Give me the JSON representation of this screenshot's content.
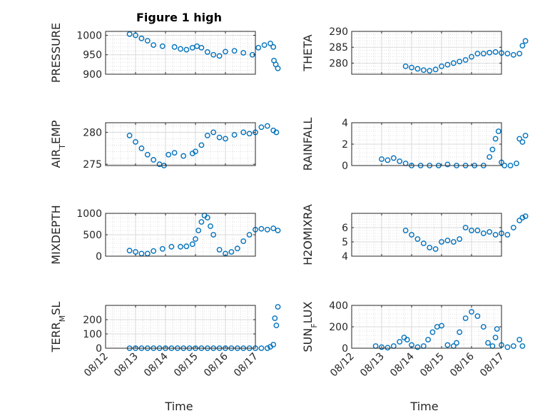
{
  "figure": {
    "title": "Figure 1 high",
    "xlabel": "Time",
    "x_tick_labels": [
      "08/12",
      "08/13",
      "08/14",
      "08/15",
      "08/16",
      "08/17"
    ]
  },
  "colors": {
    "marker": "#0072BD",
    "axes": "#262626",
    "grid": "#c8c8c8",
    "background": "#ffffff"
  },
  "chart_data": [
    {
      "type": "scatter",
      "ylabel": "PRESSURE",
      "ylim": [
        900,
        1010
      ],
      "yticks": [
        900,
        950,
        1000
      ],
      "x_axis_ticks_labelled": false,
      "series": [
        {
          "x": [
            0.8,
            1.0,
            1.2,
            1.4,
            1.6,
            1.9,
            2.3,
            2.5,
            2.7,
            2.9,
            3.05,
            3.2,
            3.4,
            3.6,
            3.8,
            4.0,
            4.3,
            4.6,
            4.9,
            5.1,
            5.3,
            5.5,
            5.6,
            5.62,
            5.68,
            5.75
          ],
          "y": [
            1003,
            1000,
            992,
            986,
            975,
            972,
            970,
            965,
            963,
            968,
            972,
            968,
            957,
            950,
            947,
            958,
            960,
            955,
            950,
            968,
            975,
            979,
            970,
            935,
            925,
            915
          ]
        }
      ]
    },
    {
      "type": "scatter",
      "ylabel": "THETA",
      "ylim": [
        276.5,
        290
      ],
      "yticks": [
        280,
        285,
        290
      ],
      "x_axis_ticks_labelled": false,
      "series": [
        {
          "x": [
            1.8,
            2.0,
            2.2,
            2.4,
            2.6,
            2.8,
            3.0,
            3.2,
            3.4,
            3.6,
            3.8,
            4.0,
            4.2,
            4.4,
            4.6,
            4.8,
            5.0,
            5.2,
            5.4,
            5.6,
            5.7,
            5.8
          ],
          "y": [
            279,
            278.6,
            278.2,
            277.8,
            277.6,
            278,
            279,
            279.5,
            280,
            280.5,
            281,
            282,
            283,
            283,
            283.3,
            283.5,
            283.2,
            283,
            282.6,
            283,
            285.5,
            287
          ]
        }
      ]
    },
    {
      "type": "scatter",
      "ylabel": "AIR_TEMP",
      "ylim": [
        274.8,
        281.5
      ],
      "yticks": [
        275,
        280
      ],
      "x_axis_ticks_labelled": false,
      "series": [
        {
          "x": [
            0.8,
            1.0,
            1.2,
            1.4,
            1.6,
            1.8,
            1.95,
            2.1,
            2.3,
            2.6,
            2.9,
            3.0,
            3.2,
            3.4,
            3.6,
            3.8,
            4.0,
            4.3,
            4.6,
            4.8,
            5.0,
            5.2,
            5.4,
            5.6,
            5.7
          ],
          "y": [
            279.5,
            278.5,
            277.5,
            276.5,
            275.7,
            275,
            274.8,
            276.5,
            276.8,
            276.3,
            276.7,
            277,
            278,
            279.5,
            280,
            279.2,
            279,
            279.6,
            280,
            279.8,
            280,
            280.8,
            281,
            280.3,
            280
          ]
        }
      ]
    },
    {
      "type": "scatter",
      "ylabel": "RAINFALL",
      "ylim": [
        0,
        4
      ],
      "yticks": [
        0,
        2,
        4
      ],
      "x_axis_ticks_labelled": false,
      "series": [
        {
          "x": [
            1.0,
            1.2,
            1.4,
            1.6,
            1.8,
            2.0,
            2.3,
            2.6,
            2.9,
            3.2,
            3.5,
            3.8,
            4.1,
            4.4,
            4.6,
            4.7,
            4.8,
            4.9,
            5.0,
            5.1,
            5.3,
            5.5,
            5.6,
            5.7,
            5.8
          ],
          "y": [
            0.6,
            0.5,
            0.7,
            0.4,
            0.2,
            0,
            0,
            0,
            0,
            0.1,
            0,
            0,
            0,
            0,
            0.8,
            1.5,
            2.5,
            3.2,
            0.3,
            0,
            0,
            0.2,
            2.5,
            2.2,
            2.8
          ]
        }
      ]
    },
    {
      "type": "scatter",
      "ylabel": "MIXDEPTH",
      "ylim": [
        0,
        1000
      ],
      "yticks": [
        0,
        500,
        1000
      ],
      "x_axis_ticks_labelled": false,
      "series": [
        {
          "x": [
            0.8,
            1.0,
            1.2,
            1.4,
            1.6,
            1.9,
            2.2,
            2.5,
            2.7,
            2.9,
            3.0,
            3.1,
            3.2,
            3.3,
            3.4,
            3.5,
            3.6,
            3.8,
            4.0,
            4.2,
            4.4,
            4.6,
            4.8,
            5.0,
            5.2,
            5.4,
            5.6,
            5.75
          ],
          "y": [
            130,
            100,
            60,
            60,
            120,
            170,
            220,
            220,
            230,
            280,
            400,
            600,
            800,
            950,
            900,
            700,
            500,
            150,
            60,
            100,
            180,
            350,
            500,
            620,
            640,
            620,
            650,
            600
          ]
        }
      ]
    },
    {
      "type": "scatter",
      "ylabel": "H2OMIXRA",
      "ylim": [
        4,
        7
      ],
      "yticks": [
        4,
        5,
        6
      ],
      "x_axis_ticks_labelled": false,
      "series": [
        {
          "x": [
            1.8,
            2.0,
            2.2,
            2.4,
            2.6,
            2.8,
            3.0,
            3.2,
            3.4,
            3.6,
            3.8,
            4.0,
            4.2,
            4.4,
            4.6,
            4.8,
            5.0,
            5.2,
            5.4,
            5.6,
            5.7,
            5.8
          ],
          "y": [
            5.8,
            5.5,
            5.2,
            4.9,
            4.6,
            4.5,
            5,
            5.1,
            5,
            5.2,
            6,
            5.8,
            5.8,
            5.6,
            5.7,
            5.5,
            5.6,
            5.5,
            6,
            6.5,
            6.7,
            6.8
          ]
        }
      ]
    },
    {
      "type": "scatter",
      "ylabel": "TERR_MSL",
      "ylim": [
        0,
        300
      ],
      "yticks": [
        0,
        100,
        200
      ],
      "x_axis_ticks_labelled": true,
      "series": [
        {
          "x": [
            0.8,
            1.0,
            1.2,
            1.4,
            1.6,
            1.8,
            2.0,
            2.2,
            2.4,
            2.6,
            2.8,
            3.0,
            3.2,
            3.4,
            3.6,
            3.8,
            4.0,
            4.2,
            4.4,
            4.6,
            4.8,
            5.0,
            5.2,
            5.4,
            5.5,
            5.6,
            5.65,
            5.7,
            5.75
          ],
          "y": [
            0,
            0,
            0,
            0,
            0,
            0,
            0,
            0,
            0,
            0,
            0,
            0,
            0,
            0,
            0,
            0,
            0,
            0,
            0,
            0,
            0,
            0,
            0,
            0,
            10,
            25,
            210,
            160,
            290
          ]
        }
      ]
    },
    {
      "type": "scatter",
      "ylabel": "SUN_FLUX",
      "ylim": [
        0,
        400
      ],
      "yticks": [
        0,
        200,
        400
      ],
      "x_axis_ticks_labelled": true,
      "series": [
        {
          "x": [
            0.8,
            1.0,
            1.2,
            1.4,
            1.6,
            1.75,
            1.85,
            2.0,
            2.2,
            2.4,
            2.55,
            2.7,
            2.85,
            3.0,
            3.2,
            3.4,
            3.5,
            3.6,
            3.8,
            4.0,
            4.2,
            4.4,
            4.55,
            4.7,
            4.8,
            4.85,
            5.0,
            5.2,
            5.4,
            5.6,
            5.7
          ],
          "y": [
            20,
            10,
            5,
            20,
            60,
            100,
            80,
            30,
            10,
            20,
            80,
            150,
            200,
            210,
            30,
            20,
            50,
            150,
            280,
            340,
            300,
            200,
            50,
            20,
            100,
            180,
            30,
            10,
            20,
            80,
            20
          ]
        }
      ]
    }
  ]
}
